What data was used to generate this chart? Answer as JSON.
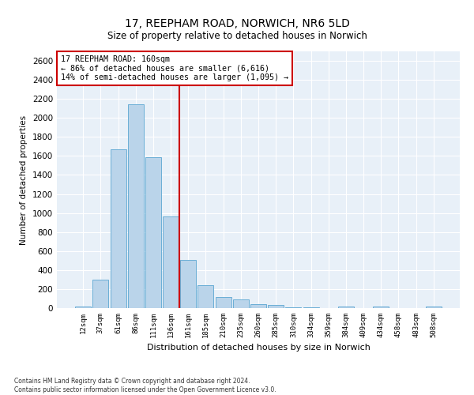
{
  "title": "17, REEPHAM ROAD, NORWICH, NR6 5LD",
  "subtitle": "Size of property relative to detached houses in Norwich",
  "xlabel": "Distribution of detached houses by size in Norwich",
  "ylabel": "Number of detached properties",
  "bar_color": "#bad4ea",
  "bar_edge_color": "#6aaed6",
  "background_color": "#e8f0f8",
  "annotation_text_line1": "17 REEPHAM ROAD: 160sqm",
  "annotation_text_line2": "← 86% of detached houses are smaller (6,616)",
  "annotation_text_line3": "14% of semi-detached houses are larger (1,095) →",
  "bin_labels": [
    "12sqm",
    "37sqm",
    "61sqm",
    "86sqm",
    "111sqm",
    "136sqm",
    "161sqm",
    "185sqm",
    "210sqm",
    "235sqm",
    "260sqm",
    "285sqm",
    "310sqm",
    "334sqm",
    "359sqm",
    "384sqm",
    "409sqm",
    "434sqm",
    "458sqm",
    "483sqm",
    "508sqm"
  ],
  "bin_values": [
    20,
    295,
    1670,
    2140,
    1590,
    965,
    510,
    245,
    115,
    95,
    40,
    30,
    10,
    5,
    2,
    20,
    2,
    15,
    2,
    2,
    20
  ],
  "ylim": [
    0,
    2700
  ],
  "yticks": [
    0,
    200,
    400,
    600,
    800,
    1000,
    1200,
    1400,
    1600,
    1800,
    2000,
    2200,
    2400,
    2600
  ],
  "red_line_color": "#cc0000",
  "annotation_box_color": "#cc0000",
  "footer_line1": "Contains HM Land Registry data © Crown copyright and database right 2024.",
  "footer_line2": "Contains public sector information licensed under the Open Government Licence v3.0."
}
